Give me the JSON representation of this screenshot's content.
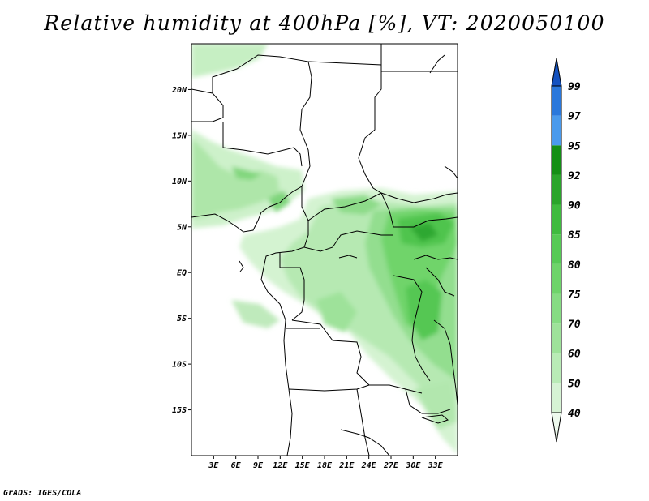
{
  "title": "Relative humidity at 400hPa [%], VT: 2020050100",
  "credit": "GrADS: IGES/COLA",
  "map": {
    "lon_range": [
      0,
      36
    ],
    "lat_range": [
      -20,
      25
    ],
    "lat_ticks": [
      {
        "value": 20,
        "label": "20N"
      },
      {
        "value": 15,
        "label": "15N"
      },
      {
        "value": 10,
        "label": "10N"
      },
      {
        "value": 5,
        "label": "5N"
      },
      {
        "value": 0,
        "label": "EQ"
      },
      {
        "value": -5,
        "label": "5S"
      },
      {
        "value": -10,
        "label": "10S"
      },
      {
        "value": -15,
        "label": "15S"
      }
    ],
    "lon_ticks": [
      {
        "value": 3,
        "label": "3E"
      },
      {
        "value": 6,
        "label": "6E"
      },
      {
        "value": 9,
        "label": "9E"
      },
      {
        "value": 12,
        "label": "12E"
      },
      {
        "value": 15,
        "label": "15E"
      },
      {
        "value": 18,
        "label": "18E"
      },
      {
        "value": 21,
        "label": "21E"
      },
      {
        "value": 24,
        "label": "24E"
      },
      {
        "value": 27,
        "label": "27E"
      },
      {
        "value": 30,
        "label": "30E"
      },
      {
        "value": 33,
        "label": "33E"
      }
    ]
  },
  "colorbar": {
    "levels": [
      "40",
      "50",
      "60",
      "70",
      "75",
      "80",
      "85",
      "90",
      "92",
      "95",
      "97",
      "99"
    ],
    "colors": [
      "#eefaee",
      "#d6f3d4",
      "#b9ebb6",
      "#9ee29a",
      "#86dc83",
      "#6ed46a",
      "#56ca55",
      "#3fbb3f",
      "#2aa52b",
      "#148f15",
      "#4a9aec",
      "#2a78dc",
      "#1452c0"
    ]
  }
}
